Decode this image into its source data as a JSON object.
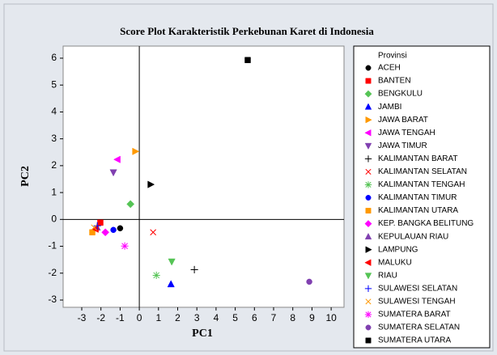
{
  "chart_data": {
    "type": "scatter",
    "title": "Score Plot  Karakteristik Perkebunan Karet di Indonesia",
    "x_label": "PC1",
    "y_label": "PC2",
    "legend_title": "Provinsi",
    "legend": "right",
    "xlim": [
      -3.97,
      10.67
    ],
    "ylim": [
      -3.27,
      6.45
    ],
    "xticks": [
      -3,
      -2,
      -1,
      0,
      1,
      2,
      3,
      4,
      5,
      6,
      7,
      8,
      9,
      10
    ],
    "yticks": [
      -3,
      -2,
      -1,
      0,
      1,
      2,
      3,
      4,
      5,
      6
    ],
    "reference_lines": {
      "x": 0,
      "y": 0
    },
    "series": [
      {
        "name": "ACEH",
        "color": "#000000",
        "marker": "circle",
        "x": [
          -1.0
        ],
        "values": [
          -0.33
        ]
      },
      {
        "name": "BANTEN",
        "color": "#ff0000",
        "marker": "square",
        "x": [
          -2.03
        ],
        "values": [
          -0.12
        ]
      },
      {
        "name": "BENGKULU",
        "color": "#55c455",
        "marker": "diamond",
        "x": [
          -0.46
        ],
        "values": [
          0.57
        ]
      },
      {
        "name": "JAMBI",
        "color": "#0000ff",
        "marker": "triangle-up",
        "x": [
          1.65
        ],
        "values": [
          -2.41
        ]
      },
      {
        "name": "JAWA BARAT",
        "color": "#ff9900",
        "marker": "triangle-right",
        "x": [
          -0.21
        ],
        "values": [
          2.53
        ]
      },
      {
        "name": "JAWA TENGAH",
        "color": "#ff00ff",
        "marker": "triangle-left",
        "x": [
          -1.14
        ],
        "values": [
          2.23
        ]
      },
      {
        "name": "JAWA TIMUR",
        "color": "#8040b0",
        "marker": "triangle-down",
        "x": [
          -1.35
        ],
        "values": [
          1.75
        ]
      },
      {
        "name": "KALIMANTAN BARAT",
        "color": "#000000",
        "marker": "plus",
        "x": [
          2.87
        ],
        "values": [
          -1.87
        ]
      },
      {
        "name": "KALIMANTAN SELATAN",
        "color": "#ff0000",
        "marker": "x",
        "x": [
          0.72
        ],
        "values": [
          -0.48
        ]
      },
      {
        "name": "KALIMANTAN TENGAH",
        "color": "#55c455",
        "marker": "asterisk",
        "x": [
          0.89
        ],
        "values": [
          -2.08
        ]
      },
      {
        "name": "KALIMANTAN TIMUR",
        "color": "#0000ff",
        "marker": "circle",
        "x": [
          -1.35
        ],
        "values": [
          -0.39
        ]
      },
      {
        "name": "KALIMANTAN UTARA",
        "color": "#ff9900",
        "marker": "square",
        "x": [
          -2.45
        ],
        "values": [
          -0.48
        ]
      },
      {
        "name": "KEP. BANGKA BELITUNG",
        "color": "#ff00ff",
        "marker": "diamond",
        "x": [
          -1.77
        ],
        "values": [
          -0.48
        ]
      },
      {
        "name": "KEPULAUAN RIAU",
        "color": "#8040b0",
        "marker": "triangle-up",
        "x": [
          -2.2
        ],
        "values": [
          -0.3
        ]
      },
      {
        "name": "LAMPUNG",
        "color": "#000000",
        "marker": "triangle-right",
        "x": [
          0.59
        ],
        "values": [
          1.3
        ]
      },
      {
        "name": "MALUKU",
        "color": "#ff0000",
        "marker": "triangle-left",
        "x": [
          -2.28
        ],
        "values": [
          -0.36
        ]
      },
      {
        "name": "RIAU",
        "color": "#55c455",
        "marker": "triangle-down",
        "x": [
          1.69
        ],
        "values": [
          -1.57
        ]
      },
      {
        "name": "SULAWESI SELATAN",
        "color": "#0000ff",
        "marker": "plus",
        "x": [
          -2.19
        ],
        "values": [
          -0.24
        ]
      },
      {
        "name": "SULAWESI TENGAH",
        "color": "#ff9900",
        "marker": "x",
        "x": [
          -2.36
        ],
        "values": [
          -0.3
        ]
      },
      {
        "name": "SUMATERA BARAT",
        "color": "#ff00ff",
        "marker": "asterisk",
        "x": [
          -0.76
        ],
        "values": [
          -0.99
        ]
      },
      {
        "name": "SUMATERA SELATAN",
        "color": "#8040b0",
        "marker": "circle",
        "x": [
          8.86
        ],
        "values": [
          -2.32
        ]
      },
      {
        "name": "SUMATERA UTARA",
        "color": "#000000",
        "marker": "square",
        "x": [
          5.65
        ],
        "values": [
          5.93
        ]
      }
    ]
  }
}
